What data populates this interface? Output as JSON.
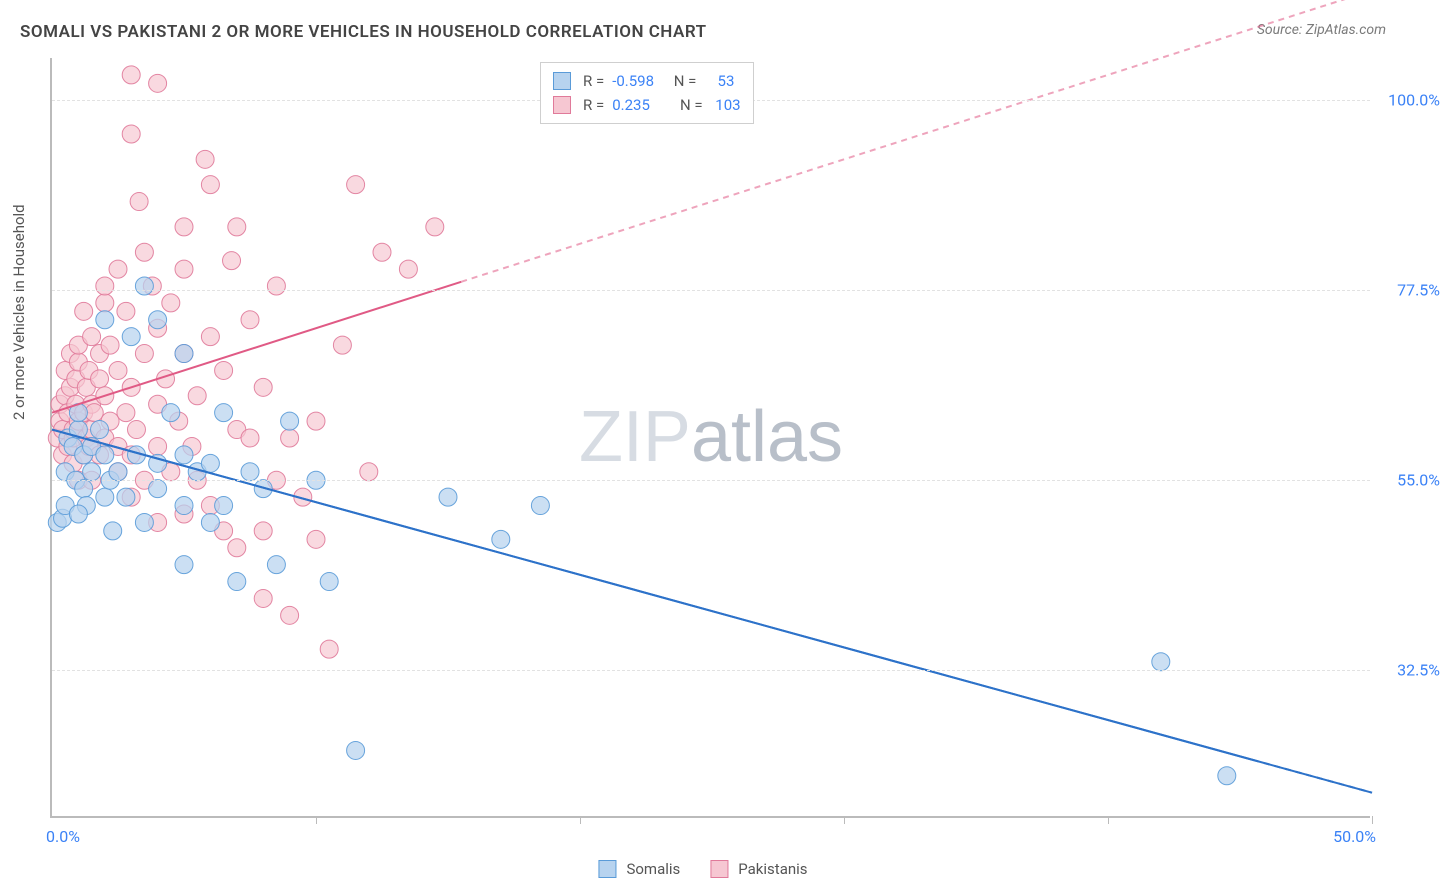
{
  "chart": {
    "type": "scatter",
    "title": "SOMALI VS PAKISTANI 2 OR MORE VEHICLES IN HOUSEHOLD CORRELATION CHART",
    "source_label": "Source: ZipAtlas.com",
    "y_axis_title": "2 or more Vehicles in Household",
    "watermark": {
      "part1": "ZIP",
      "part2": "atlas"
    },
    "background_color": "#ffffff",
    "grid_color": "#e2e2e2",
    "axis_color": "#bbbbbb",
    "label_color": "#3b82f6",
    "x_axis": {
      "min": 0,
      "max": 50,
      "ticks": [
        0,
        10,
        20,
        30,
        40,
        50
      ],
      "tick_labels": [
        "0.0%",
        "",
        "",
        "",
        "",
        "50.0%"
      ]
    },
    "y_axis": {
      "min": 15,
      "max": 105,
      "ticks": [
        32.5,
        55.0,
        77.5,
        100.0
      ],
      "tick_labels": [
        "32.5%",
        "55.0%",
        "77.5%",
        "100.0%"
      ]
    },
    "series": [
      {
        "id": "somalis",
        "name": "Somalis",
        "color_fill": "#b7d3ef",
        "color_stroke": "#5a9bd8",
        "marker_radius": 9,
        "marker_opacity": 0.72,
        "regression": {
          "slope": -0.86,
          "intercept": 61,
          "color": "#2d72c9",
          "width": 2
        },
        "R": -0.598,
        "N": 53,
        "points": [
          [
            0.2,
            50
          ],
          [
            0.4,
            50.5
          ],
          [
            0.5,
            52
          ],
          [
            0.5,
            56
          ],
          [
            0.6,
            60
          ],
          [
            0.8,
            59
          ],
          [
            0.9,
            55
          ],
          [
            1.0,
            61
          ],
          [
            1.0,
            63
          ],
          [
            1.2,
            54
          ],
          [
            1.2,
            58
          ],
          [
            1.3,
            52
          ],
          [
            1.5,
            56
          ],
          [
            1.5,
            59
          ],
          [
            1.8,
            61
          ],
          [
            2.0,
            53
          ],
          [
            2.0,
            58
          ],
          [
            2.0,
            74
          ],
          [
            2.2,
            55
          ],
          [
            2.3,
            49
          ],
          [
            2.5,
            56
          ],
          [
            2.8,
            53
          ],
          [
            3.0,
            72
          ],
          [
            3.2,
            58
          ],
          [
            3.5,
            50
          ],
          [
            3.5,
            78
          ],
          [
            4.0,
            54
          ],
          [
            4.0,
            57
          ],
          [
            4.0,
            74
          ],
          [
            4.5,
            63
          ],
          [
            5.0,
            45
          ],
          [
            5.0,
            52
          ],
          [
            5.0,
            58
          ],
          [
            5.0,
            70
          ],
          [
            5.5,
            56
          ],
          [
            6.0,
            50
          ],
          [
            6.0,
            57
          ],
          [
            6.5,
            52
          ],
          [
            6.5,
            63
          ],
          [
            7.0,
            43
          ],
          [
            7.5,
            56
          ],
          [
            8.0,
            54
          ],
          [
            8.5,
            45
          ],
          [
            9.0,
            62
          ],
          [
            10.0,
            55
          ],
          [
            10.5,
            43
          ],
          [
            11.5,
            23
          ],
          [
            15.0,
            53
          ],
          [
            17.0,
            48
          ],
          [
            18.5,
            52
          ],
          [
            42.0,
            33.5
          ],
          [
            44.5,
            20
          ],
          [
            1.0,
            51
          ]
        ]
      },
      {
        "id": "pakistanis",
        "name": "Pakistanis",
        "color_fill": "#f6c7d2",
        "color_stroke": "#e07a9a",
        "marker_radius": 9,
        "marker_opacity": 0.68,
        "regression": {
          "slope": 1.0,
          "intercept": 63,
          "color": "#e05a85",
          "width": 2
        },
        "R": 0.235,
        "N": 103,
        "points": [
          [
            0.2,
            60
          ],
          [
            0.3,
            62
          ],
          [
            0.3,
            64
          ],
          [
            0.4,
            58
          ],
          [
            0.4,
            61
          ],
          [
            0.5,
            65
          ],
          [
            0.5,
            68
          ],
          [
            0.6,
            59
          ],
          [
            0.6,
            63
          ],
          [
            0.7,
            66
          ],
          [
            0.7,
            70
          ],
          [
            0.8,
            57
          ],
          [
            0.8,
            60
          ],
          [
            0.8,
            61
          ],
          [
            0.9,
            64
          ],
          [
            0.9,
            67
          ],
          [
            1.0,
            55
          ],
          [
            1.0,
            62
          ],
          [
            1.0,
            69
          ],
          [
            1.0,
            71
          ],
          [
            1.2,
            58
          ],
          [
            1.2,
            63
          ],
          [
            1.2,
            75
          ],
          [
            1.3,
            60
          ],
          [
            1.3,
            66
          ],
          [
            1.4,
            59
          ],
          [
            1.4,
            68
          ],
          [
            1.5,
            55
          ],
          [
            1.5,
            61
          ],
          [
            1.5,
            64
          ],
          [
            1.5,
            72
          ],
          [
            1.6,
            63
          ],
          [
            1.8,
            58
          ],
          [
            1.8,
            67
          ],
          [
            1.8,
            70
          ],
          [
            2.0,
            60
          ],
          [
            2.0,
            65
          ],
          [
            2.0,
            76
          ],
          [
            2.0,
            78
          ],
          [
            2.2,
            62
          ],
          [
            2.2,
            71
          ],
          [
            2.5,
            56
          ],
          [
            2.5,
            59
          ],
          [
            2.5,
            68
          ],
          [
            2.5,
            80
          ],
          [
            2.8,
            63
          ],
          [
            2.8,
            75
          ],
          [
            3.0,
            53
          ],
          [
            3.0,
            58
          ],
          [
            3.0,
            66
          ],
          [
            3.0,
            103
          ],
          [
            3.0,
            96
          ],
          [
            3.2,
            61
          ],
          [
            3.5,
            55
          ],
          [
            3.5,
            70
          ],
          [
            3.5,
            82
          ],
          [
            3.8,
            78
          ],
          [
            4.0,
            50
          ],
          [
            4.0,
            59
          ],
          [
            4.0,
            64
          ],
          [
            4.0,
            73
          ],
          [
            4.0,
            102
          ],
          [
            4.3,
            67
          ],
          [
            4.5,
            56
          ],
          [
            4.5,
            76
          ],
          [
            4.8,
            62
          ],
          [
            5.0,
            51
          ],
          [
            5.0,
            70
          ],
          [
            5.0,
            80
          ],
          [
            5.0,
            85
          ],
          [
            5.3,
            59
          ],
          [
            5.5,
            55
          ],
          [
            5.5,
            65
          ],
          [
            6.0,
            52
          ],
          [
            6.0,
            72
          ],
          [
            6.0,
            90
          ],
          [
            6.5,
            49
          ],
          [
            6.5,
            68
          ],
          [
            7.0,
            47
          ],
          [
            7.0,
            61
          ],
          [
            7.0,
            85
          ],
          [
            7.5,
            60
          ],
          [
            7.5,
            74
          ],
          [
            8.0,
            41
          ],
          [
            8.0,
            49
          ],
          [
            8.0,
            66
          ],
          [
            8.5,
            55
          ],
          [
            8.5,
            78
          ],
          [
            9.0,
            39
          ],
          [
            9.0,
            60
          ],
          [
            9.5,
            53
          ],
          [
            10.0,
            48
          ],
          [
            10.0,
            62
          ],
          [
            10.5,
            35
          ],
          [
            11.0,
            71
          ],
          [
            11.5,
            90
          ],
          [
            12.0,
            56
          ],
          [
            12.5,
            82
          ],
          [
            13.5,
            80
          ],
          [
            14.5,
            85
          ],
          [
            5.8,
            93
          ],
          [
            6.8,
            81
          ],
          [
            3.3,
            88
          ]
        ]
      }
    ],
    "stats_box": {
      "rows": [
        {
          "swatch_fill": "#b7d3ef",
          "swatch_stroke": "#5a9bd8",
          "R_label": "R =",
          "R_val": "-0.598",
          "N_label": "N =",
          "N_val": "53"
        },
        {
          "swatch_fill": "#f6c7d2",
          "swatch_stroke": "#e07a9a",
          "R_label": "R =",
          "R_val": "0.235",
          "N_label": "N =",
          "N_val": "103"
        }
      ]
    },
    "legend": [
      "Somalis",
      "Pakistanis"
    ]
  }
}
